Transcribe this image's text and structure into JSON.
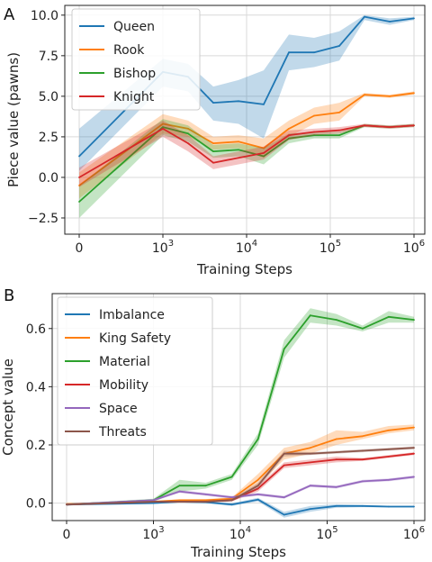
{
  "chart_data": [
    {
      "type": "line",
      "panel_label": "A",
      "xlabel": "Training Steps",
      "ylabel": "Piece value (pawns)",
      "xscale": "symlog",
      "xticks": [
        {
          "value": 0,
          "label": "0"
        },
        {
          "value": 1000,
          "label": "10",
          "exp": "3"
        },
        {
          "value": 10000,
          "label": "10",
          "exp": "4"
        },
        {
          "value": 100000,
          "label": "10",
          "exp": "5"
        },
        {
          "value": 1000000,
          "label": "10",
          "exp": "6"
        }
      ],
      "yticks": [
        {
          "value": -2.5,
          "label": "−2.5"
        },
        {
          "value": 0,
          "label": "0.0"
        },
        {
          "value": 2.5,
          "label": "2.5"
        },
        {
          "value": 5,
          "label": "5.0"
        },
        {
          "value": 7.5,
          "label": "7.5"
        },
        {
          "value": 10,
          "label": "10.0"
        }
      ],
      "ylim": [
        -3.5,
        10.6
      ],
      "grid": true,
      "legend_position": "top-left",
      "series": [
        {
          "name": "Queen",
          "color": "#1f77b4",
          "x": [
            0,
            1000,
            2000,
            4000,
            8000,
            16000,
            32000,
            64000,
            128000,
            256000,
            512000,
            1000000
          ],
          "y": [
            1.3,
            6.5,
            6.2,
            4.6,
            4.7,
            4.5,
            7.7,
            7.7,
            8.1,
            9.9,
            9.6,
            9.8
          ],
          "lo": [
            0.4,
            5.6,
            5.3,
            3.5,
            3.3,
            2.4,
            6.6,
            6.8,
            7.2,
            9.7,
            9.4,
            9.7
          ],
          "hi": [
            3.0,
            7.3,
            7.0,
            5.6,
            6.0,
            6.6,
            8.8,
            8.6,
            9.0,
            10.0,
            9.8,
            9.9
          ]
        },
        {
          "name": "Rook",
          "color": "#ff7f0e",
          "x": [
            0,
            1000,
            2000,
            4000,
            8000,
            16000,
            32000,
            64000,
            128000,
            256000,
            512000,
            1000000
          ],
          "y": [
            -0.5,
            3.3,
            3.0,
            2.1,
            2.2,
            1.8,
            3.0,
            3.8,
            4.0,
            5.1,
            5.0,
            5.2
          ],
          "lo": [
            -1.3,
            2.7,
            2.5,
            1.7,
            1.8,
            1.2,
            2.5,
            3.3,
            3.5,
            5.0,
            4.9,
            5.1
          ],
          "hi": [
            0.3,
            3.9,
            3.5,
            2.5,
            2.6,
            2.4,
            3.5,
            4.3,
            4.6,
            5.2,
            5.1,
            5.3
          ]
        },
        {
          "name": "Bishop",
          "color": "#2ca02c",
          "x": [
            0,
            1000,
            2000,
            4000,
            8000,
            16000,
            32000,
            64000,
            128000,
            256000,
            512000,
            1000000
          ],
          "y": [
            -1.5,
            3.1,
            2.7,
            1.6,
            1.7,
            1.3,
            2.4,
            2.6,
            2.6,
            3.2,
            3.1,
            3.2
          ],
          "lo": [
            -2.5,
            2.6,
            2.2,
            1.2,
            1.3,
            0.8,
            2.1,
            2.4,
            2.4,
            3.1,
            3.0,
            3.1
          ],
          "hi": [
            -0.5,
            3.6,
            3.2,
            2.0,
            2.1,
            1.8,
            2.7,
            2.8,
            2.8,
            3.3,
            3.2,
            3.3
          ]
        },
        {
          "name": "Knight",
          "color": "#d62728",
          "x": [
            0,
            1000,
            2000,
            4000,
            8000,
            16000,
            32000,
            64000,
            128000,
            256000,
            512000,
            1000000
          ],
          "y": [
            0.0,
            3.0,
            2.1,
            0.9,
            1.2,
            1.5,
            2.6,
            2.8,
            2.9,
            3.2,
            3.1,
            3.2
          ],
          "lo": [
            -0.6,
            2.5,
            1.6,
            0.5,
            0.8,
            1.1,
            2.3,
            2.6,
            2.7,
            3.1,
            3.0,
            3.1
          ],
          "hi": [
            0.6,
            3.5,
            2.6,
            1.3,
            1.6,
            1.9,
            2.9,
            3.0,
            3.1,
            3.3,
            3.2,
            3.3
          ]
        }
      ]
    },
    {
      "type": "line",
      "panel_label": "B",
      "xlabel": "Training Steps",
      "ylabel": "Concept value",
      "xscale": "symlog",
      "xticks": [
        {
          "value": 0,
          "label": "0"
        },
        {
          "value": 1000,
          "label": "10",
          "exp": "3"
        },
        {
          "value": 10000,
          "label": "10",
          "exp": "4"
        },
        {
          "value": 100000,
          "label": "10",
          "exp": "5"
        },
        {
          "value": 1000000,
          "label": "10",
          "exp": "6"
        }
      ],
      "yticks": [
        {
          "value": 0,
          "label": "0.0"
        },
        {
          "value": 0.2,
          "label": "0.2"
        },
        {
          "value": 0.4,
          "label": "0.4"
        },
        {
          "value": 0.6,
          "label": "0.6"
        }
      ],
      "ylim": [
        -0.06,
        0.72
      ],
      "grid": true,
      "legend_position": "top-left",
      "series": [
        {
          "name": "Imbalance",
          "color": "#1f77b4",
          "x": [
            0,
            1000,
            2000,
            4000,
            8000,
            16000,
            32000,
            64000,
            128000,
            256000,
            512000,
            1000000
          ],
          "y": [
            -0.005,
            0.0,
            0.005,
            0.003,
            -0.005,
            0.012,
            -0.04,
            -0.02,
            -0.01,
            -0.01,
            -0.012,
            -0.012
          ],
          "lo": [
            -0.008,
            -0.003,
            0.002,
            0.0,
            -0.01,
            0.006,
            -0.05,
            -0.03,
            -0.016,
            -0.014,
            -0.015,
            -0.015
          ],
          "hi": [
            -0.002,
            0.003,
            0.008,
            0.006,
            0.0,
            0.018,
            -0.03,
            -0.01,
            -0.004,
            -0.006,
            -0.009,
            -0.009
          ]
        },
        {
          "name": "King Safety",
          "color": "#ff7f0e",
          "x": [
            0,
            1000,
            2000,
            4000,
            8000,
            16000,
            32000,
            64000,
            128000,
            256000,
            512000,
            1000000
          ],
          "y": [
            -0.003,
            0.005,
            0.01,
            0.01,
            0.015,
            0.08,
            0.17,
            0.19,
            0.22,
            0.23,
            0.25,
            0.26
          ],
          "lo": [
            -0.006,
            0.002,
            0.007,
            0.006,
            0.01,
            0.06,
            0.15,
            0.17,
            0.2,
            0.22,
            0.24,
            0.25
          ],
          "hi": [
            0.0,
            0.008,
            0.013,
            0.014,
            0.02,
            0.1,
            0.19,
            0.21,
            0.25,
            0.245,
            0.265,
            0.27
          ]
        },
        {
          "name": "Material",
          "color": "#2ca02c",
          "x": [
            0,
            1000,
            2000,
            4000,
            8000,
            16000,
            32000,
            64000,
            128000,
            256000,
            512000,
            1000000
          ],
          "y": [
            -0.005,
            0.01,
            0.06,
            0.06,
            0.09,
            0.22,
            0.53,
            0.645,
            0.63,
            0.6,
            0.64,
            0.63
          ],
          "lo": [
            -0.008,
            0.005,
            0.04,
            0.05,
            0.08,
            0.2,
            0.5,
            0.62,
            0.61,
            0.59,
            0.62,
            0.62
          ],
          "hi": [
            -0.002,
            0.015,
            0.08,
            0.07,
            0.1,
            0.24,
            0.56,
            0.67,
            0.65,
            0.61,
            0.66,
            0.64
          ]
        },
        {
          "name": "Mobility",
          "color": "#d62728",
          "x": [
            0,
            1000,
            2000,
            4000,
            8000,
            16000,
            32000,
            64000,
            128000,
            256000,
            512000,
            1000000
          ],
          "y": [
            -0.005,
            0.005,
            0.005,
            0.005,
            0.01,
            0.05,
            0.13,
            0.14,
            0.15,
            0.15,
            0.16,
            0.17
          ],
          "lo": [
            -0.008,
            0.002,
            0.002,
            0.002,
            0.006,
            0.04,
            0.12,
            0.13,
            0.14,
            0.145,
            0.155,
            0.165
          ],
          "hi": [
            -0.002,
            0.008,
            0.008,
            0.008,
            0.014,
            0.06,
            0.14,
            0.15,
            0.16,
            0.155,
            0.165,
            0.175
          ]
        },
        {
          "name": "Space",
          "color": "#9467bd",
          "x": [
            0,
            1000,
            2000,
            4000,
            8000,
            16000,
            32000,
            64000,
            128000,
            256000,
            512000,
            1000000
          ],
          "y": [
            -0.005,
            0.01,
            0.04,
            0.03,
            0.02,
            0.03,
            0.02,
            0.06,
            0.055,
            0.075,
            0.08,
            0.09
          ],
          "lo": [
            -0.008,
            0.006,
            0.035,
            0.025,
            0.015,
            0.025,
            0.015,
            0.055,
            0.05,
            0.07,
            0.075,
            0.085
          ],
          "hi": [
            -0.002,
            0.014,
            0.045,
            0.035,
            0.025,
            0.035,
            0.025,
            0.065,
            0.06,
            0.08,
            0.085,
            0.095
          ]
        },
        {
          "name": "Threats",
          "color": "#8c564b",
          "x": [
            0,
            1000,
            2000,
            4000,
            8000,
            16000,
            32000,
            64000,
            128000,
            256000,
            512000,
            1000000
          ],
          "y": [
            -0.005,
            0.005,
            0.005,
            0.005,
            0.01,
            0.06,
            0.17,
            0.17,
            0.175,
            0.18,
            0.185,
            0.19
          ],
          "lo": [
            -0.008,
            0.002,
            0.002,
            0.002,
            0.006,
            0.05,
            0.16,
            0.165,
            0.17,
            0.175,
            0.18,
            0.185
          ],
          "hi": [
            -0.002,
            0.008,
            0.008,
            0.008,
            0.014,
            0.07,
            0.18,
            0.175,
            0.18,
            0.185,
            0.19,
            0.195
          ]
        }
      ]
    }
  ]
}
